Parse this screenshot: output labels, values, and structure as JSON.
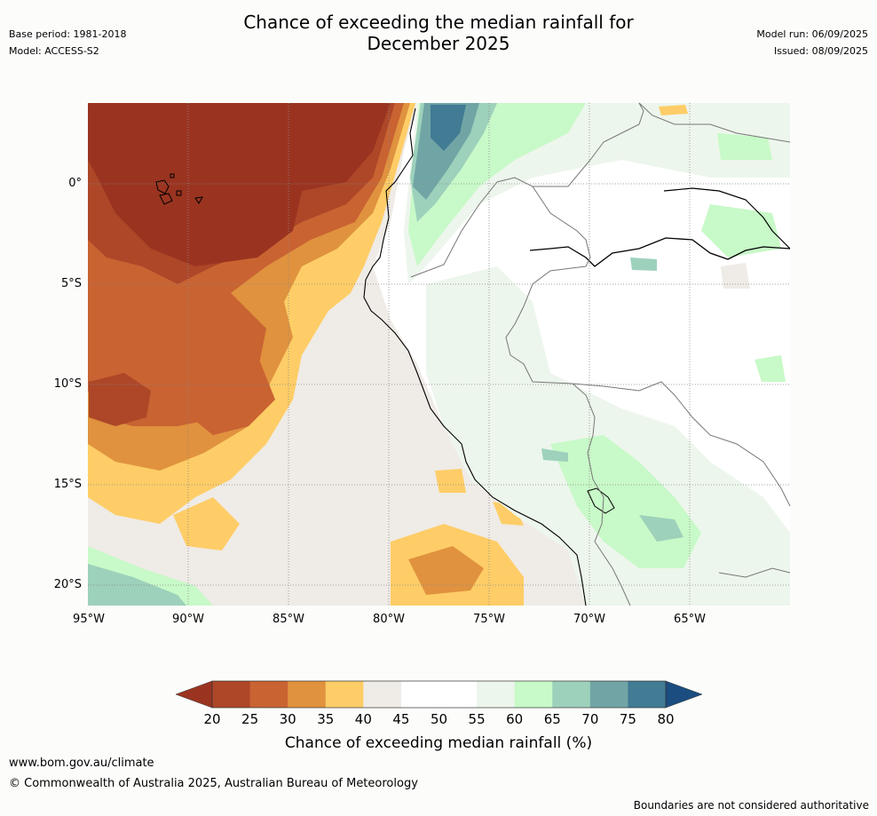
{
  "header": {
    "title_line1": "Chance of exceeding the median rainfall for",
    "title_line2": "December 2025",
    "base_period": "Base period: 1981-2018",
    "model": "Model: ACCESS-S2",
    "model_run": "Model run: 06/09/2025",
    "issued": "Issued: 08/09/2025"
  },
  "map": {
    "lat_labels": [
      "0°",
      "5°S",
      "10°S",
      "15°S",
      "20°S"
    ],
    "lon_labels": [
      "95°W",
      "90°W",
      "85°W",
      "80°W",
      "75°W",
      "70°W",
      "65°W"
    ],
    "palette": {
      "lt20": "#7a2a18",
      "20_25": "#9a3420",
      "25_30": "#ad4728",
      "30_35": "#c96332",
      "35_40": "#e0923e",
      "40_45": "#fecd67",
      "45_50": "#efebe6",
      "50_55": "#ffffff",
      "55_60": "#edf6ec",
      "60_65": "#c8f9c8",
      "65_70": "#9dd1bb",
      "70_75": "#71a5a5",
      "75_80": "#417b94",
      "gt80": "#1b4d80"
    }
  },
  "colorbar": {
    "ticks": [
      "20",
      "25",
      "30",
      "35",
      "40",
      "45",
      "50",
      "55",
      "60",
      "65",
      "70",
      "75",
      "80"
    ],
    "colors": [
      "#ad4728",
      "#c96332",
      "#e0923e",
      "#fecd67",
      "#efebe6",
      "#ffffff",
      "#ffffff",
      "#edf6ec",
      "#c8f9c8",
      "#9dd1bb",
      "#71a5a5",
      "#417b94"
    ],
    "under_color": "#9a3420",
    "over_color": "#1b4d80",
    "label": "Chance of exceeding median rainfall (%)"
  },
  "footer": {
    "website": "www.bom.gov.au/climate",
    "copyright": "© Commonwealth of Australia 2025, Australian Bureau of Meteorology",
    "disclaimer": "Boundaries are not considered authoritative"
  }
}
